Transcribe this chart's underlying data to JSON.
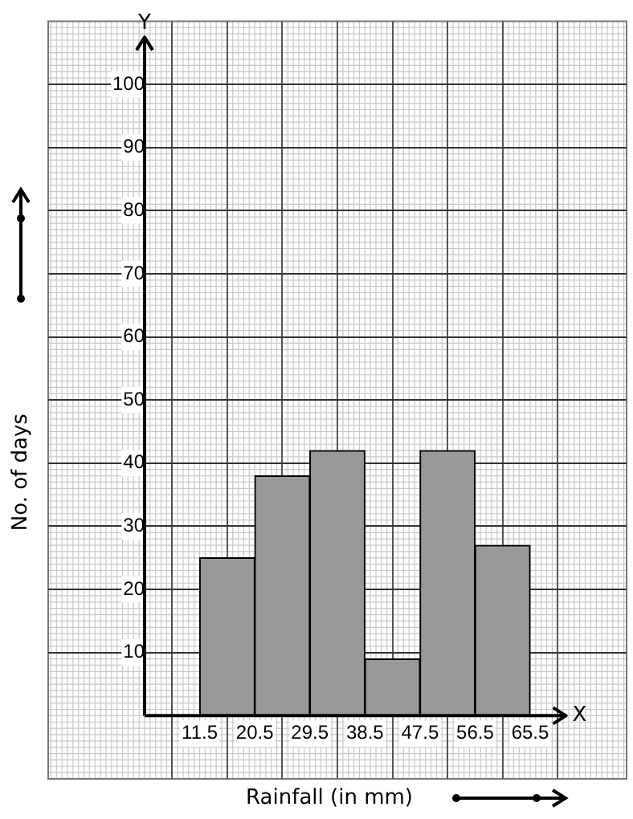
{
  "chart_data": {
    "type": "histogram",
    "xlabel": "Rainfall (in mm)",
    "ylabel": "No. of days",
    "bins": [
      11.5,
      20.5,
      29.5,
      38.5,
      47.5,
      56.5,
      65.5
    ],
    "values": [
      25,
      38,
      42,
      9,
      42,
      27
    ],
    "color": "#999999",
    "xlim": [
      -6.5,
      74.5
    ],
    "xticks": [
      11.5,
      20.5,
      29.5,
      38.5,
      47.5,
      56.5,
      65.5
    ],
    "ylim": [
      -10,
      110
    ],
    "yticks": [
      10,
      20,
      30,
      40,
      50,
      60,
      70,
      80,
      90,
      100
    ],
    "annotations": [
      "X",
      "Y"
    ],
    "grid": true,
    "legend": false
  }
}
